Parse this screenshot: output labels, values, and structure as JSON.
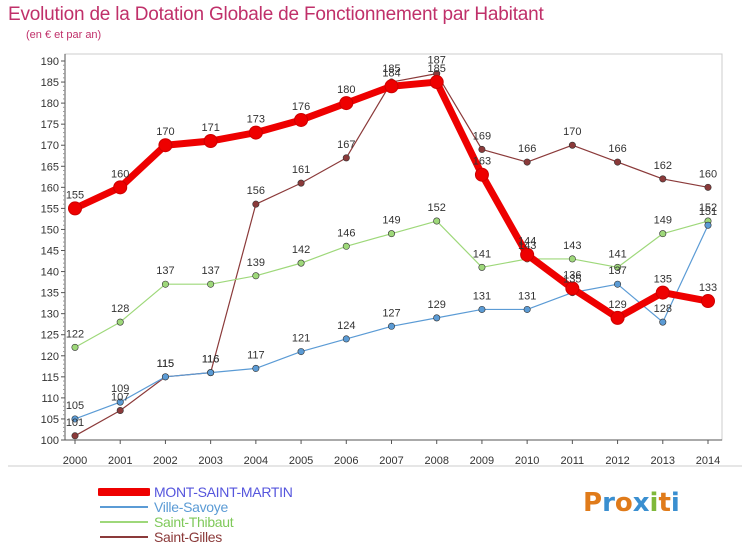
{
  "header": {
    "title": "Evolution de la Dotation Globale de Fonctionnement par Habitant",
    "subtitle": "(en € et par an)"
  },
  "logo": {
    "text": "Proxiti",
    "colors": [
      "#e07b1a",
      "#3a8fd0",
      "#e07b1a",
      "#3a8fd0",
      "#7fb83a",
      "#e07b1a",
      "#3a8fd0"
    ]
  },
  "chart_data": {
    "type": "line",
    "x": [
      2000,
      2001,
      2002,
      2003,
      2004,
      2005,
      2006,
      2007,
      2008,
      2009,
      2010,
      2011,
      2012,
      2013,
      2014
    ],
    "x_tick_labels": [
      "2000",
      "2001",
      "2002",
      "2003",
      "2004",
      "2005",
      "2006",
      "2007",
      "2008",
      "2009",
      "2010",
      "2011",
      "2012",
      "2013",
      "2014"
    ],
    "ylim": [
      100,
      190
    ],
    "y_ticks": [
      100,
      105,
      110,
      115,
      120,
      125,
      130,
      135,
      140,
      145,
      150,
      155,
      160,
      165,
      170,
      175,
      180,
      185,
      190
    ],
    "y_tick_labels": [
      "100",
      "105",
      "110",
      "115",
      "120",
      "125",
      "130",
      "135",
      "140",
      "145",
      "150",
      "155",
      "160",
      "165",
      "170",
      "175",
      "180",
      "185",
      "190"
    ],
    "grid": false,
    "legend_position": "bottom-left",
    "series": [
      {
        "name": "MONT-SAINT-MARTIN",
        "color": "#ee0000",
        "label_color": "#5555dd",
        "line_width": 7,
        "values": [
          155,
          160,
          170,
          171,
          173,
          176,
          180,
          184,
          185,
          163,
          144,
          136,
          129,
          135,
          133
        ],
        "labels": [
          "155",
          "160",
          "170",
          "171",
          "173",
          "176",
          "180",
          "184",
          "185",
          "163",
          "144",
          "136",
          "129",
          "135",
          "133"
        ]
      },
      {
        "name": "Ville-Savoye",
        "color": "#5b9bd5",
        "label_color": "#5b9bd5",
        "line_width": 1.2,
        "values": [
          105,
          109,
          115,
          116,
          117,
          121,
          124,
          127,
          129,
          131,
          131,
          135,
          137,
          128,
          151
        ],
        "labels": [
          "105",
          "109",
          "115",
          "116",
          "117",
          "121",
          "124",
          "127",
          "129",
          "131",
          "131",
          "135",
          "137",
          "128",
          "151"
        ]
      },
      {
        "name": "Saint-Thibaut",
        "color": "#9ed87a",
        "label_color": "#7fc95a",
        "line_width": 1.2,
        "values": [
          122,
          128,
          137,
          137,
          139,
          142,
          146,
          149,
          152,
          141,
          143,
          143,
          141,
          149,
          152
        ],
        "labels": [
          "122",
          "128",
          "137",
          "137",
          "139",
          "142",
          "146",
          "149",
          "152",
          "141",
          "143",
          "143",
          "141",
          "149",
          "152"
        ]
      },
      {
        "name": "Saint-Gilles",
        "color": "#8b3a3a",
        "label_color": "#8b3a3a",
        "line_width": 1.2,
        "values": [
          101,
          107,
          115,
          116,
          156,
          161,
          167,
          185,
          187,
          169,
          166,
          170,
          166,
          162,
          160
        ],
        "labels": [
          "101",
          "107",
          "115",
          "116",
          "156",
          "161",
          "167",
          "185",
          "187",
          "169",
          "166",
          "170",
          "166",
          "162",
          "160"
        ]
      }
    ]
  }
}
